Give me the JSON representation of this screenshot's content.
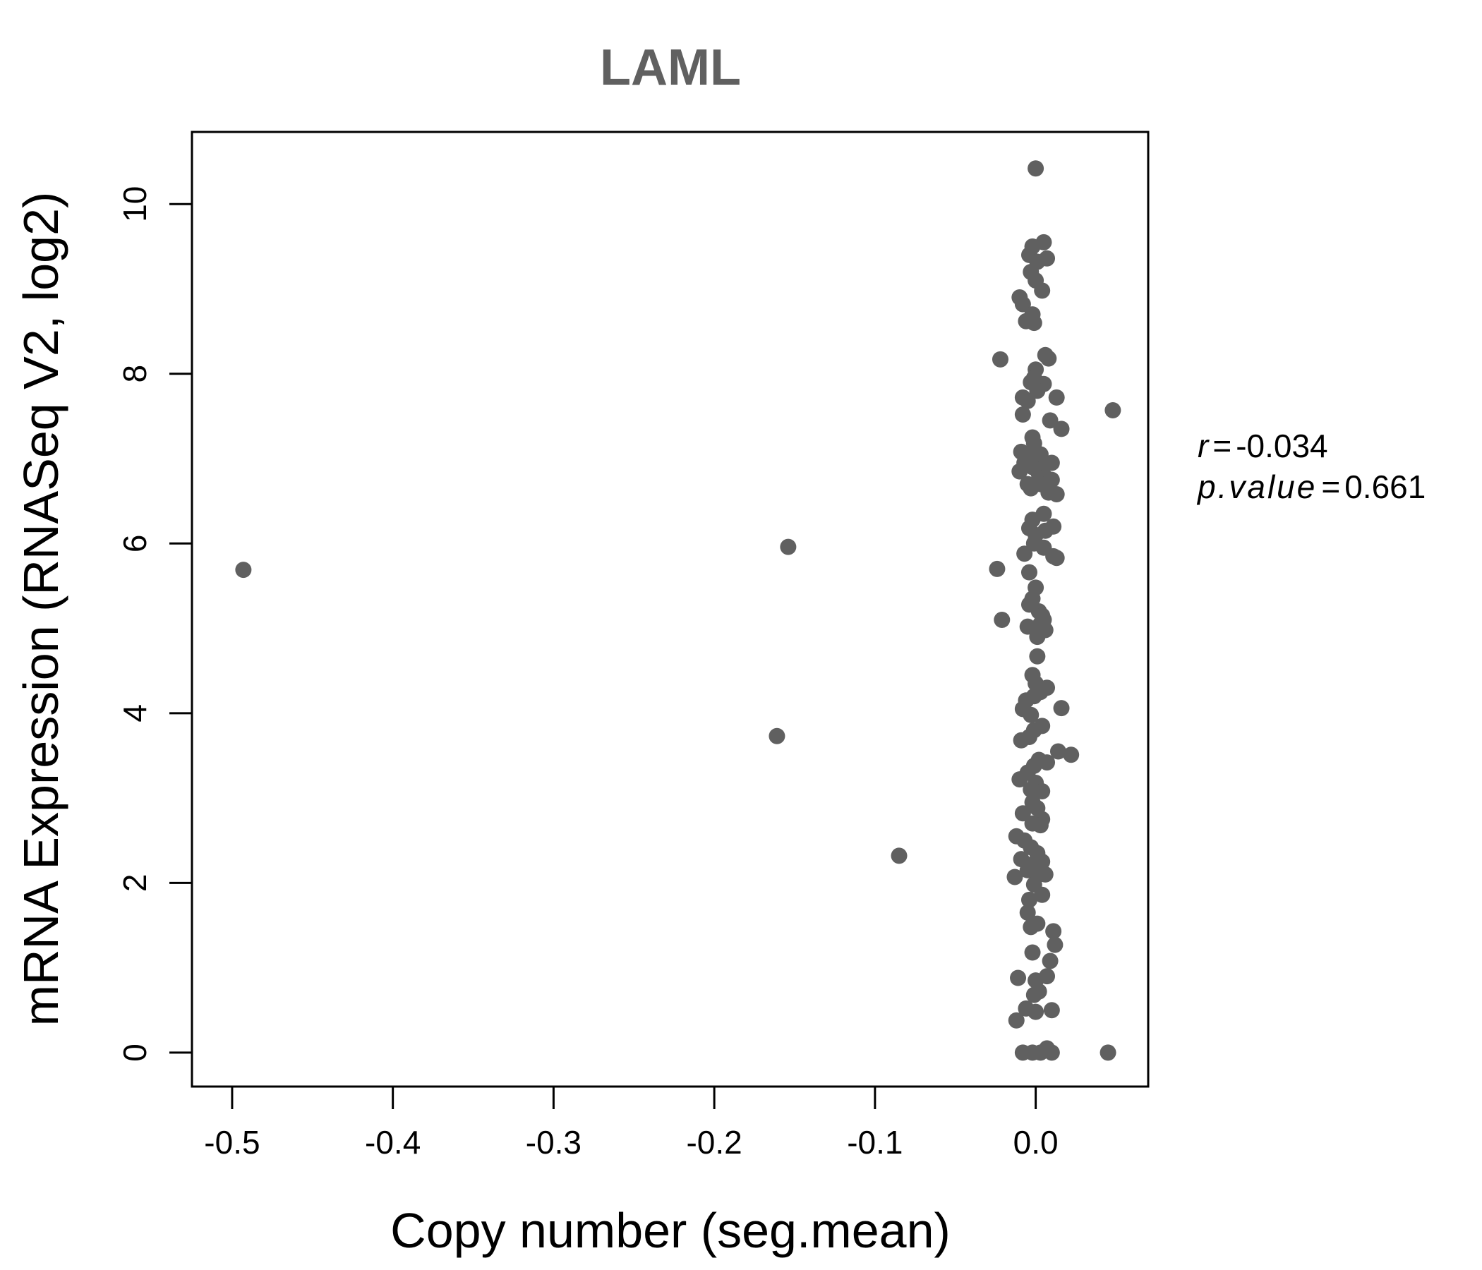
{
  "chart_data": {
    "type": "scatter",
    "title": "LAML",
    "xlabel": "Copy number (seg.mean)",
    "ylabel": "mRNA Expression (RNASeq V2, log2)",
    "xlim": [
      -0.525,
      0.07
    ],
    "ylim": [
      -0.4,
      10.85
    ],
    "x_ticks": [
      -0.5,
      -0.4,
      -0.3,
      -0.2,
      -0.1,
      0.0
    ],
    "x_tick_labels": [
      "-0.5",
      "-0.4",
      "-0.3",
      "-0.2",
      "-0.1",
      "0.0"
    ],
    "y_ticks": [
      0,
      2,
      4,
      6,
      8,
      10
    ],
    "y_tick_labels": [
      "0",
      "2",
      "4",
      "6",
      "8",
      "10"
    ],
    "point_color": "#606060",
    "stats": {
      "r_label": "r",
      "r_value": "-0.034",
      "p_label": "p.value",
      "p_value": "0.661"
    },
    "points": [
      {
        "x": 0.0,
        "y": 10.42
      },
      {
        "x": 0.005,
        "y": 9.55
      },
      {
        "x": -0.002,
        "y": 9.5
      },
      {
        "x": -0.004,
        "y": 9.4
      },
      {
        "x": 0.007,
        "y": 9.36
      },
      {
        "x": 0.001,
        "y": 9.32
      },
      {
        "x": -0.003,
        "y": 9.2
      },
      {
        "x": 0.0,
        "y": 9.1
      },
      {
        "x": 0.004,
        "y": 8.98
      },
      {
        "x": -0.01,
        "y": 8.9
      },
      {
        "x": -0.008,
        "y": 8.82
      },
      {
        "x": -0.002,
        "y": 8.7
      },
      {
        "x": -0.006,
        "y": 8.62
      },
      {
        "x": -0.001,
        "y": 8.6
      },
      {
        "x": 0.006,
        "y": 8.22
      },
      {
        "x": 0.008,
        "y": 8.18
      },
      {
        "x": -0.022,
        "y": 8.17
      },
      {
        "x": 0.0,
        "y": 8.05
      },
      {
        "x": -0.001,
        "y": 7.95
      },
      {
        "x": -0.003,
        "y": 7.9
      },
      {
        "x": 0.005,
        "y": 7.88
      },
      {
        "x": 0.001,
        "y": 7.8
      },
      {
        "x": -0.008,
        "y": 7.72
      },
      {
        "x": 0.013,
        "y": 7.72
      },
      {
        "x": -0.005,
        "y": 7.68
      },
      {
        "x": -0.008,
        "y": 7.52
      },
      {
        "x": 0.048,
        "y": 7.57
      },
      {
        "x": 0.009,
        "y": 7.45
      },
      {
        "x": 0.016,
        "y": 7.35
      },
      {
        "x": -0.002,
        "y": 7.25
      },
      {
        "x": -0.001,
        "y": 7.18
      },
      {
        "x": -0.009,
        "y": 7.08
      },
      {
        "x": 0.003,
        "y": 7.05
      },
      {
        "x": -0.004,
        "y": 7.02
      },
      {
        "x": 0.001,
        "y": 6.98
      },
      {
        "x": -0.007,
        "y": 6.95
      },
      {
        "x": 0.01,
        "y": 6.95
      },
      {
        "x": -0.002,
        "y": 6.9
      },
      {
        "x": 0.004,
        "y": 6.88
      },
      {
        "x": -0.01,
        "y": 6.85
      },
      {
        "x": 0.002,
        "y": 6.82
      },
      {
        "x": 0.006,
        "y": 6.78
      },
      {
        "x": 0.01,
        "y": 6.75
      },
      {
        "x": -0.005,
        "y": 6.7
      },
      {
        "x": 0.003,
        "y": 6.7
      },
      {
        "x": -0.003,
        "y": 6.65
      },
      {
        "x": 0.008,
        "y": 6.6
      },
      {
        "x": 0.013,
        "y": 6.58
      },
      {
        "x": 0.005,
        "y": 6.35
      },
      {
        "x": -0.002,
        "y": 6.28
      },
      {
        "x": 0.011,
        "y": 6.2
      },
      {
        "x": -0.004,
        "y": 6.18
      },
      {
        "x": 0.006,
        "y": 6.15
      },
      {
        "x": 0.0,
        "y": 6.1
      },
      {
        "x": -0.001,
        "y": 6.0
      },
      {
        "x": 0.005,
        "y": 5.95
      },
      {
        "x": -0.154,
        "y": 5.96
      },
      {
        "x": -0.007,
        "y": 5.88
      },
      {
        "x": 0.013,
        "y": 5.83
      },
      {
        "x": 0.011,
        "y": 5.85
      },
      {
        "x": -0.024,
        "y": 5.7
      },
      {
        "x": -0.493,
        "y": 5.69
      },
      {
        "x": -0.004,
        "y": 5.66
      },
      {
        "x": 0.0,
        "y": 5.48
      },
      {
        "x": -0.002,
        "y": 5.35
      },
      {
        "x": -0.004,
        "y": 5.28
      },
      {
        "x": 0.002,
        "y": 5.2
      },
      {
        "x": 0.004,
        "y": 5.15
      },
      {
        "x": 0.005,
        "y": 5.1
      },
      {
        "x": -0.021,
        "y": 5.1
      },
      {
        "x": 0.003,
        "y": 5.05
      },
      {
        "x": -0.005,
        "y": 5.02
      },
      {
        "x": 0.006,
        "y": 4.98
      },
      {
        "x": 0.002,
        "y": 4.95
      },
      {
        "x": 0.001,
        "y": 4.9
      },
      {
        "x": 0.001,
        "y": 4.67
      },
      {
        "x": -0.002,
        "y": 4.45
      },
      {
        "x": 0.0,
        "y": 4.35
      },
      {
        "x": 0.007,
        "y": 4.3
      },
      {
        "x": 0.003,
        "y": 4.25
      },
      {
        "x": -0.001,
        "y": 4.2
      },
      {
        "x": -0.006,
        "y": 4.15
      },
      {
        "x": 0.016,
        "y": 4.06
      },
      {
        "x": -0.008,
        "y": 4.05
      },
      {
        "x": -0.003,
        "y": 3.98
      },
      {
        "x": 0.004,
        "y": 3.85
      },
      {
        "x": -0.001,
        "y": 3.8
      },
      {
        "x": -0.161,
        "y": 3.73
      },
      {
        "x": -0.004,
        "y": 3.72
      },
      {
        "x": -0.009,
        "y": 3.68
      },
      {
        "x": 0.014,
        "y": 3.55
      },
      {
        "x": 0.022,
        "y": 3.51
      },
      {
        "x": 0.002,
        "y": 3.45
      },
      {
        "x": 0.007,
        "y": 3.42
      },
      {
        "x": -0.001,
        "y": 3.38
      },
      {
        "x": -0.005,
        "y": 3.3
      },
      {
        "x": -0.01,
        "y": 3.22
      },
      {
        "x": 0.0,
        "y": 3.18
      },
      {
        "x": -0.003,
        "y": 3.1
      },
      {
        "x": 0.004,
        "y": 3.08
      },
      {
        "x": -0.002,
        "y": 2.95
      },
      {
        "x": 0.001,
        "y": 2.88
      },
      {
        "x": -0.008,
        "y": 2.82
      },
      {
        "x": 0.004,
        "y": 2.75
      },
      {
        "x": -0.002,
        "y": 2.7
      },
      {
        "x": 0.003,
        "y": 2.68
      },
      {
        "x": -0.012,
        "y": 2.55
      },
      {
        "x": -0.007,
        "y": 2.5
      },
      {
        "x": -0.003,
        "y": 2.42
      },
      {
        "x": 0.001,
        "y": 2.35
      },
      {
        "x": -0.085,
        "y": 2.32
      },
      {
        "x": -0.009,
        "y": 2.28
      },
      {
        "x": 0.004,
        "y": 2.25
      },
      {
        "x": -0.002,
        "y": 2.22
      },
      {
        "x": 0.0,
        "y": 2.18
      },
      {
        "x": -0.005,
        "y": 2.15
      },
      {
        "x": 0.002,
        "y": 2.1
      },
      {
        "x": 0.006,
        "y": 2.1
      },
      {
        "x": -0.013,
        "y": 2.07
      },
      {
        "x": -0.001,
        "y": 1.98
      },
      {
        "x": 0.004,
        "y": 1.86
      },
      {
        "x": -0.004,
        "y": 1.8
      },
      {
        "x": -0.005,
        "y": 1.65
      },
      {
        "x": 0.001,
        "y": 1.52
      },
      {
        "x": -0.003,
        "y": 1.48
      },
      {
        "x": 0.011,
        "y": 1.43
      },
      {
        "x": 0.012,
        "y": 1.27
      },
      {
        "x": -0.002,
        "y": 1.18
      },
      {
        "x": 0.009,
        "y": 1.08
      },
      {
        "x": 0.007,
        "y": 0.9
      },
      {
        "x": -0.011,
        "y": 0.88
      },
      {
        "x": 0.0,
        "y": 0.85
      },
      {
        "x": 0.002,
        "y": 0.72
      },
      {
        "x": -0.001,
        "y": 0.68
      },
      {
        "x": 0.01,
        "y": 0.5
      },
      {
        "x": -0.006,
        "y": 0.52
      },
      {
        "x": 0.0,
        "y": 0.48
      },
      {
        "x": -0.012,
        "y": 0.38
      },
      {
        "x": -0.008,
        "y": 0.0
      },
      {
        "x": -0.002,
        "y": 0.0
      },
      {
        "x": 0.003,
        "y": 0.0
      },
      {
        "x": 0.007,
        "y": 0.05
      },
      {
        "x": 0.01,
        "y": 0.0
      },
      {
        "x": 0.045,
        "y": 0.0
      }
    ]
  }
}
